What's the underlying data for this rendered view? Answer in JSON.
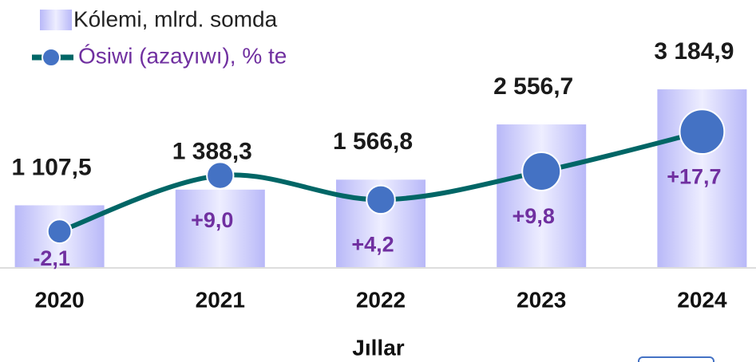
{
  "chart_data": {
    "type": "bar+line",
    "categories": [
      "2020",
      "2021",
      "2022",
      "2023",
      "2024"
    ],
    "x_label": "Jıllar",
    "series": [
      {
        "name": "Kólemi, mlrd. somda",
        "type": "bar",
        "color": "#c9c9fb",
        "values": [
          1107.5,
          1388.3,
          1566.8,
          2556.7,
          3184.9
        ],
        "value_labels": [
          "1 107,5",
          "1 388,3",
          "1 566,8",
          "2 556,7",
          "3 184,9"
        ]
      },
      {
        "name": "Ósiwi (azayıwı), % te",
        "type": "line",
        "axis": "y2",
        "color": "#006666",
        "marker_color": "#4472c4",
        "values": [
          -2.1,
          9.0,
          4.2,
          9.8,
          17.7
        ],
        "value_labels": [
          "-2,1",
          "+9,0",
          "+4,2",
          "+9,8",
          "+17,7"
        ]
      }
    ],
    "ylim": [
      0,
      3500
    ],
    "y2lim": [
      -9.2,
      29.6
    ]
  }
}
